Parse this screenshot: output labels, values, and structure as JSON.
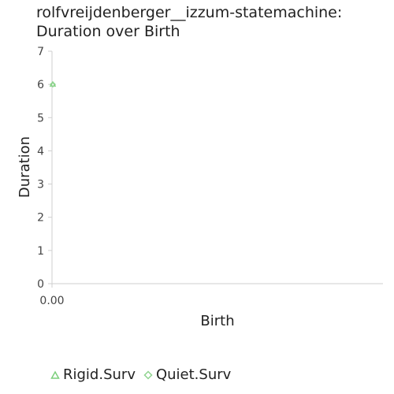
{
  "chart_data": {
    "type": "scatter",
    "title_lines": [
      "rolfvreijdenberger__izzum-statemachine:",
      "Duration over Birth"
    ],
    "xlabel": "Birth",
    "ylabel": "Duration",
    "x_ticks": [
      "0.00"
    ],
    "y_ticks": [
      "0",
      "1",
      "2",
      "3",
      "4",
      "5",
      "6",
      "7"
    ],
    "ylim": [
      0,
      7
    ],
    "grid": false,
    "legend_position": "bottom",
    "series": [
      {
        "name": "Rigid.Surv",
        "marker": "triangle",
        "color": "#7ccf7c",
        "points": [
          {
            "x": 0,
            "y": 6
          }
        ]
      },
      {
        "name": "Quiet.Surv",
        "marker": "diamond",
        "color": "#8fd48f",
        "points": [
          {
            "x": 0,
            "y": 6
          }
        ]
      }
    ]
  }
}
